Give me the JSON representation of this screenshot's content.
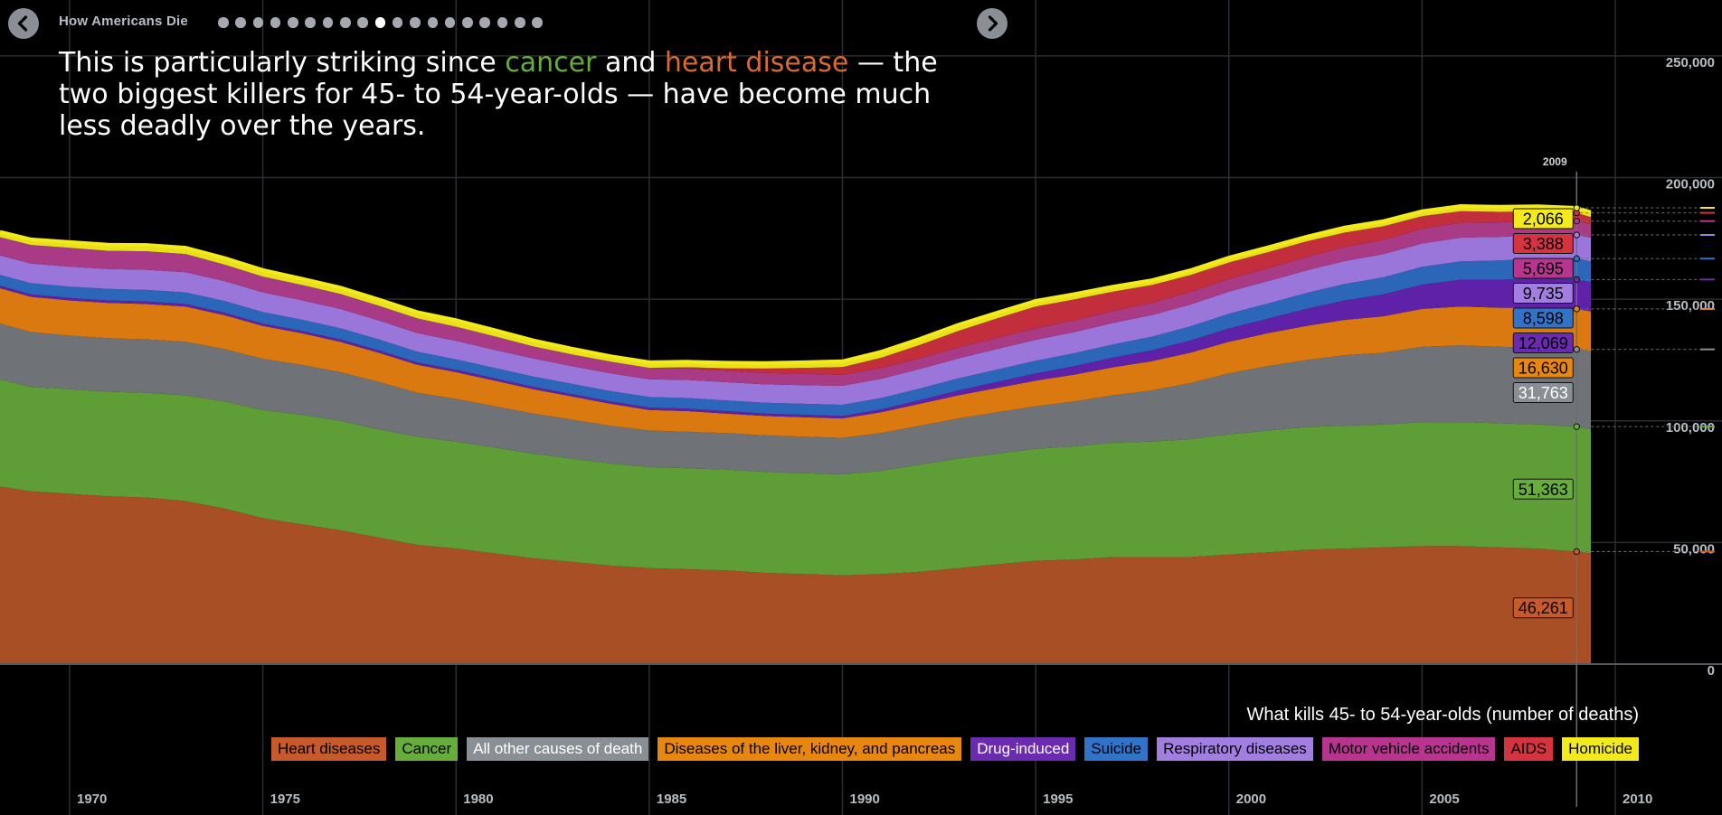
{
  "nav": {
    "title": "How Americans Die",
    "dot_count": 19,
    "active_dot": 9
  },
  "headline": {
    "part1": "This is particularly striking since ",
    "cancer_word": "cancer",
    "part2": " and ",
    "heart_word": "heart disease",
    "part3": " — the two biggest killers for 45- to 54-year-olds — have become much less deadly over the years."
  },
  "chart_data": {
    "type": "area",
    "stacked": true,
    "title": "What kills 45- to 54-year-olds (number of deaths)",
    "x": [
      1968,
      1969,
      1970,
      1971,
      1972,
      1973,
      1974,
      1975,
      1976,
      1977,
      1978,
      1979,
      1980,
      1981,
      1982,
      1983,
      1984,
      1985,
      1986,
      1987,
      1988,
      1989,
      1990,
      1991,
      1992,
      1993,
      1994,
      1995,
      1996,
      1997,
      1998,
      1999,
      2000,
      2001,
      2002,
      2003,
      2004,
      2005,
      2006,
      2007,
      2008,
      2009,
      2010
    ],
    "xlim": [
      1968.2,
      2010
    ],
    "ylim": [
      0,
      260000
    ],
    "x_ticks": [
      1970,
      1975,
      1980,
      1985,
      1990,
      1995,
      2000,
      2005,
      2010
    ],
    "x_tick_labels": [
      "1970",
      "1975",
      "1980",
      "1985",
      "1990",
      "1995",
      "2000",
      "2005",
      "2010"
    ],
    "y_ticks": [
      0,
      50000,
      100000,
      150000,
      200000,
      250000
    ],
    "y_tick_labels": [
      "0",
      "50,000",
      "100,000",
      "150,000",
      "200,000",
      "250,000"
    ],
    "grid": true,
    "highlight_year": 2009,
    "highlight_year_label": "2009",
    "series": [
      {
        "name": "Heart diseases",
        "color": "#a84f25",
        "label_bg": "#c75a2a",
        "value_2009": "46,261",
        "values": [
          73000,
          71000,
          70000,
          69000,
          68500,
          67000,
          64000,
          60000,
          57500,
          55000,
          52000,
          49000,
          47500,
          45500,
          43500,
          42000,
          40500,
          39500,
          39000,
          38500,
          37500,
          37000,
          36500,
          37000,
          38000,
          39500,
          41000,
          42500,
          43000,
          44000,
          44000,
          44000,
          45000,
          46000,
          47000,
          47500,
          48000,
          48500,
          48500,
          48000,
          47500,
          46261,
          45500
        ]
      },
      {
        "name": "Cancer",
        "color": "#5f9e36",
        "label_bg": "#66ad3b",
        "value_2009": "51,363",
        "values": [
          44000,
          43000,
          43000,
          43000,
          43000,
          43500,
          44000,
          44500,
          45000,
          45000,
          44500,
          44500,
          44000,
          43500,
          43000,
          42500,
          42000,
          41500,
          41500,
          41500,
          41500,
          41500,
          41500,
          42500,
          44000,
          45000,
          45500,
          46000,
          46500,
          47000,
          47500,
          48500,
          49500,
          50000,
          50500,
          50500,
          50500,
          51000,
          51000,
          51000,
          51000,
          51363,
          51000
        ]
      },
      {
        "name": "All other causes of death",
        "color": "#6f7378",
        "label_bg": "#8a8f96",
        "value_2009": "31,763",
        "values": [
          23000,
          22500,
          22000,
          22000,
          22000,
          22000,
          21500,
          21000,
          20500,
          20000,
          19500,
          18000,
          17500,
          17000,
          16500,
          16000,
          15500,
          15000,
          15000,
          15000,
          15000,
          15000,
          15000,
          15500,
          16000,
          16500,
          17000,
          17500,
          18500,
          19500,
          21000,
          23000,
          25000,
          26500,
          27500,
          29000,
          29500,
          31000,
          31500,
          31500,
          31500,
          31763,
          32000
        ]
      },
      {
        "name": "Diseases of the liver, kidney, and pancreas",
        "color": "#d9790f",
        "label_bg": "#e8870f",
        "value_2009": "16,630",
        "values": [
          14500,
          14500,
          14500,
          14500,
          14500,
          14500,
          14000,
          13500,
          13000,
          12500,
          12000,
          11500,
          11000,
          10500,
          10000,
          9500,
          9000,
          8500,
          8500,
          8000,
          8000,
          8000,
          8000,
          8500,
          9000,
          9500,
          10000,
          10500,
          11000,
          11500,
          12000,
          12500,
          13000,
          13500,
          14000,
          14500,
          15000,
          15500,
          16000,
          16000,
          16500,
          16630,
          16500
        ]
      },
      {
        "name": "Drug-induced",
        "color": "#5f21a8",
        "label_bg": "#6a2bb0",
        "value_2009": "12,069",
        "values": [
          1000,
          1000,
          1000,
          1000,
          1000,
          1000,
          1000,
          1000,
          1000,
          1000,
          1000,
          1000,
          1000,
          1000,
          1000,
          1000,
          1000,
          1000,
          1000,
          1000,
          1000,
          1000,
          1000,
          1200,
          1500,
          2000,
          2500,
          3000,
          3500,
          4000,
          4500,
          5000,
          5500,
          6000,
          7000,
          8000,
          9000,
          10000,
          11000,
          11500,
          12000,
          12069,
          12000
        ]
      },
      {
        "name": "Suicide",
        "color": "#2b66b8",
        "label_bg": "#3073c9",
        "value_2009": "8,598",
        "values": [
          4500,
          4600,
          4700,
          4700,
          4800,
          4800,
          4800,
          4700,
          4600,
          4600,
          4500,
          4400,
          4300,
          4200,
          4200,
          4200,
          4200,
          4300,
          4400,
          4400,
          4400,
          4500,
          4600,
          4700,
          4800,
          5000,
          5100,
          5200,
          5300,
          5400,
          5600,
          5800,
          6000,
          6200,
          6500,
          6800,
          7000,
          7300,
          7600,
          7900,
          8200,
          8598,
          8600
        ]
      },
      {
        "name": "Respiratory diseases",
        "color": "#9a76db",
        "label_bg": "#a17ee0",
        "value_2009": "9,735",
        "values": [
          8000,
          8100,
          8200,
          8200,
          8300,
          8300,
          8200,
          8100,
          8000,
          7900,
          7800,
          7700,
          7600,
          7500,
          7400,
          7300,
          7300,
          7300,
          7400,
          7500,
          7600,
          7700,
          7800,
          7900,
          8000,
          8200,
          8400,
          8600,
          8700,
          8800,
          8900,
          9000,
          9100,
          9200,
          9300,
          9400,
          9500,
          9600,
          9700,
          9700,
          9700,
          9735,
          9700
        ]
      },
      {
        "name": "Motor vehicle accidents",
        "color": "#a83a86",
        "label_bg": "#b8358f",
        "value_2009": "5,695",
        "values": [
          7500,
          7600,
          7700,
          7500,
          7600,
          7500,
          6800,
          6500,
          6300,
          6200,
          6000,
          6000,
          5800,
          5500,
          5000,
          4800,
          4800,
          4700,
          4700,
          4700,
          4700,
          4600,
          4500,
          4400,
          4400,
          4500,
          4600,
          4700,
          4800,
          4900,
          5000,
          5100,
          5200,
          5300,
          5500,
          5700,
          5900,
          6000,
          6100,
          6000,
          5900,
          5695,
          5500
        ]
      },
      {
        "name": "AIDS",
        "color": "#c22e3c",
        "label_bg": "#d63341",
        "value_2009": "3,388",
        "values": [
          0,
          0,
          0,
          0,
          0,
          0,
          0,
          0,
          0,
          0,
          0,
          0,
          0,
          0,
          0,
          0,
          0,
          0,
          500,
          1000,
          1800,
          2500,
          3200,
          4200,
          5500,
          6800,
          8000,
          9000,
          8600,
          8000,
          7300,
          7000,
          6800,
          6600,
          6400,
          6000,
          5600,
          5200,
          4800,
          4300,
          3800,
          3388,
          3000
        ]
      },
      {
        "name": "Homicide",
        "color": "#e8e01a",
        "label_bg": "#f2ea1c",
        "value_2009": "2,066",
        "values": [
          2200,
          2300,
          2400,
          2500,
          2600,
          2600,
          2700,
          2700,
          2600,
          2600,
          2600,
          2600,
          2700,
          2600,
          2500,
          2400,
          2300,
          2300,
          2300,
          2300,
          2300,
          2300,
          2400,
          2500,
          2500,
          2500,
          2400,
          2300,
          2200,
          2100,
          2000,
          2000,
          2000,
          2000,
          2000,
          2100,
          2100,
          2100,
          2100,
          2100,
          2100,
          2066,
          2000
        ]
      }
    ]
  }
}
